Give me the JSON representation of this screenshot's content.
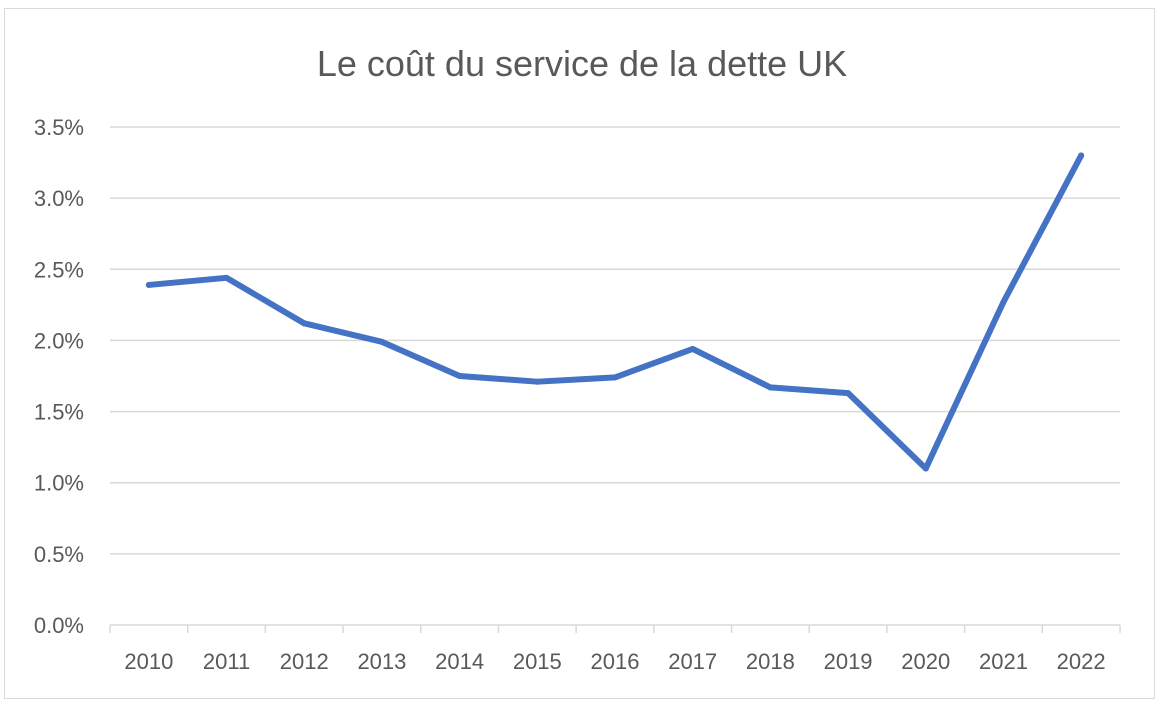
{
  "chart_data": {
    "type": "line",
    "title": "Le coût du service de la dette UK",
    "xlabel": "",
    "ylabel": "",
    "categories": [
      "2010",
      "2011",
      "2012",
      "2013",
      "2014",
      "2015",
      "2016",
      "2017",
      "2018",
      "2019",
      "2020",
      "2021",
      "2022"
    ],
    "series": [
      {
        "values": [
          2.39,
          2.44,
          2.12,
          1.99,
          1.75,
          1.71,
          1.74,
          1.94,
          1.67,
          1.63,
          1.1,
          2.27,
          3.3
        ]
      }
    ],
    "ylim": [
      0,
      3.5
    ],
    "yticks": [
      0,
      0.5,
      1.0,
      1.5,
      2.0,
      2.5,
      3.0,
      3.5
    ],
    "ytick_labels": [
      "0.0%",
      "0.5%",
      "1.0%",
      "1.5%",
      "2.0%",
      "2.5%",
      "3.0%",
      "3.5%"
    ],
    "grid": true,
    "legend": "none",
    "colors": {
      "line": "#4472c4",
      "grid": "#d9d9d9",
      "text": "#595959"
    }
  }
}
